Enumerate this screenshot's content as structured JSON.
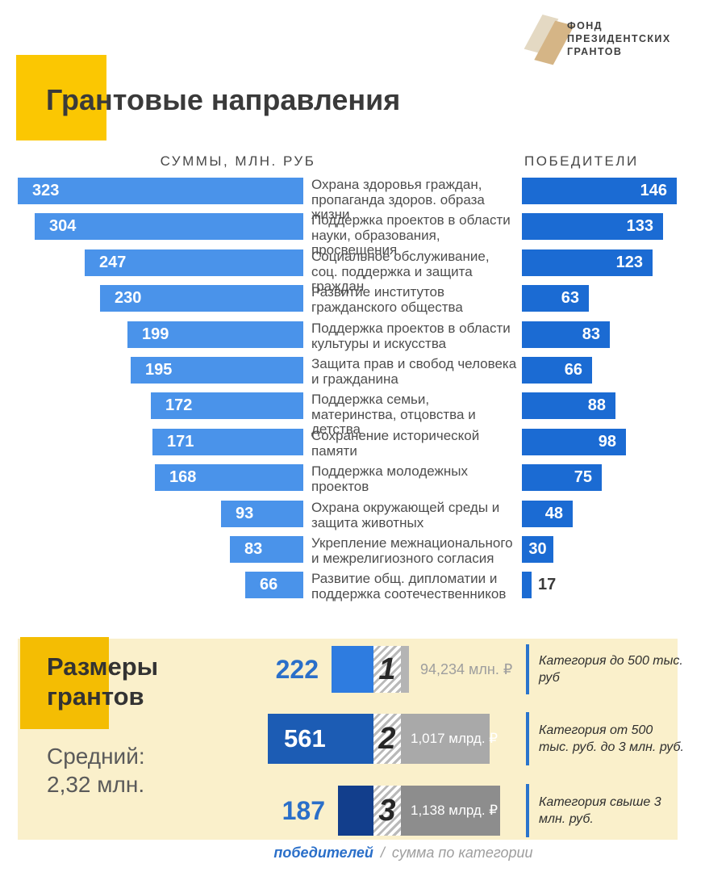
{
  "logo": {
    "lines": [
      "ФОНД",
      "ПРЕЗИДЕНТСКИХ",
      "ГРАНТОВ"
    ]
  },
  "title": "Грантовые направления",
  "chart_data": {
    "type": "bar",
    "title": "Грантовые направления",
    "left_header": "СУММЫ, МЛН. РУБ",
    "right_header": "ПОБЕДИТЕЛИ",
    "axis": {
      "left_max": 323,
      "right_max": 146
    },
    "rows": [
      {
        "label": "Охрана здоровья граждан, пропаганда здоров. образа жизни",
        "sum_mln_rub": 323,
        "winners": 146
      },
      {
        "label": "Поддержка проектов в области науки, образования, просвещения",
        "sum_mln_rub": 304,
        "winners": 133
      },
      {
        "label": "Социальное обслуживание, соц. поддержка и защита граждан",
        "sum_mln_rub": 247,
        "winners": 123
      },
      {
        "label": "Развитие институтов гражданского общества",
        "sum_mln_rub": 230,
        "winners": 63
      },
      {
        "label": "Поддержка проектов в области культуры и искусства",
        "sum_mln_rub": 199,
        "winners": 83
      },
      {
        "label": "Защита прав и свобод человека и гражданина",
        "sum_mln_rub": 195,
        "winners": 66
      },
      {
        "label": "Поддержка семьи, материнства, отцовства и детства",
        "sum_mln_rub": 172,
        "winners": 88
      },
      {
        "label": "Сохранение исторической памяти",
        "sum_mln_rub": 171,
        "winners": 98
      },
      {
        "label": "Поддержка молодежных проектов",
        "sum_mln_rub": 168,
        "winners": 75
      },
      {
        "label": "Охрана окружающей среды и защита животных",
        "sum_mln_rub": 93,
        "winners": 48
      },
      {
        "label": "Укрепление межнационального и межрелигиозного согласия",
        "sum_mln_rub": 83,
        "winners": 30
      },
      {
        "label": "Развитие общ. дипломатии и поддержка соотечественников",
        "sum_mln_rub": 66,
        "winners": 17
      }
    ],
    "colors": {
      "sum_bar": "#4a93ea",
      "winners_bar": "#1b6bd3"
    }
  },
  "grant_sizes": {
    "heading": "Размеры грантов",
    "average_label": "Средний:",
    "average_value": "2,32 млн.",
    "rows": [
      {
        "rank": "1",
        "winners": 222,
        "sum_label": "94,234 млн. ₽",
        "sum_mlrd": 0.094,
        "category": "Категория до 500 тыс. руб",
        "bar_color": "#2e7ce0",
        "gray_color": "#b4b4b4"
      },
      {
        "rank": "2",
        "winners": 561,
        "sum_label": "1,017 млрд. ₽",
        "sum_mlrd": 1.017,
        "category": "Категория от 500 тыс. руб. до 3 млн. руб.",
        "bar_color": "#1c5cb4",
        "gray_color": "#a9a9a9"
      },
      {
        "rank": "3",
        "winners": 187,
        "sum_label": "1,138 млрд. ₽",
        "sum_mlrd": 1.138,
        "category": "Категория свыше 3 млн. руб.",
        "bar_color": "#123e8c",
        "gray_color": "#8d8d8d"
      }
    ],
    "legend": {
      "winners_label": "победителей",
      "separator": "/",
      "sum_label": "сумма по категории"
    },
    "colors": {
      "panel": "#faf0cb",
      "accent_square": "#f4bd03",
      "divider": "#2a74cc",
      "number_blue": "#2a6fc9"
    }
  }
}
